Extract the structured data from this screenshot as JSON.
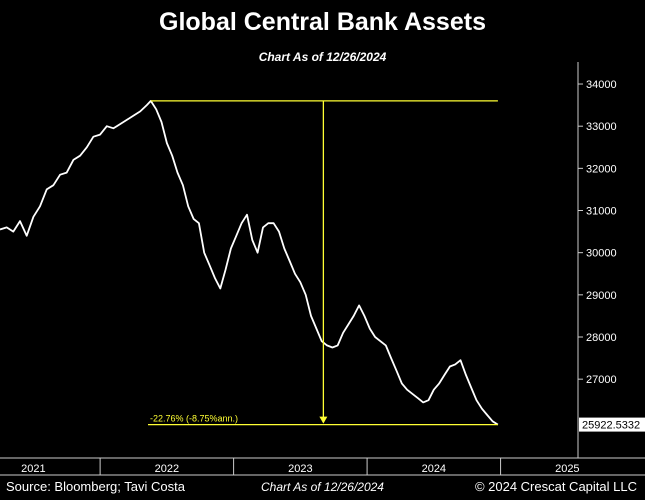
{
  "chart_data": {
    "type": "line",
    "title": "Global Central Bank Assets",
    "subtitle": "Chart As of 12/26/2024",
    "ylim": [
      25500,
      34200
    ],
    "y_ticks": [
      27000,
      28000,
      29000,
      30000,
      31000,
      32000,
      33000,
      34000
    ],
    "x_ticks": [
      "2021",
      "2022",
      "2023",
      "2024",
      "2025"
    ],
    "last_value_label": "25922.5332",
    "annotation": "-22.76% (-8.75%ann.)",
    "peak_value": 33600,
    "series": [
      {
        "values": [
          [
            2020.75,
            30550
          ],
          [
            2020.8,
            30600
          ],
          [
            2020.85,
            30500
          ],
          [
            2020.9,
            30750
          ],
          [
            2020.95,
            30400
          ],
          [
            2021.0,
            30850
          ],
          [
            2021.05,
            31100
          ],
          [
            2021.1,
            31500
          ],
          [
            2021.15,
            31600
          ],
          [
            2021.2,
            31850
          ],
          [
            2021.25,
            31900
          ],
          [
            2021.3,
            32200
          ],
          [
            2021.35,
            32300
          ],
          [
            2021.4,
            32500
          ],
          [
            2021.45,
            32750
          ],
          [
            2021.5,
            32800
          ],
          [
            2021.55,
            33000
          ],
          [
            2021.6,
            32950
          ],
          [
            2021.65,
            33050
          ],
          [
            2021.7,
            33150
          ],
          [
            2021.75,
            33250
          ],
          [
            2021.8,
            33350
          ],
          [
            2021.85,
            33500
          ],
          [
            2021.88,
            33600
          ],
          [
            2021.92,
            33400
          ],
          [
            2021.96,
            33100
          ],
          [
            2022.0,
            32600
          ],
          [
            2022.04,
            32300
          ],
          [
            2022.08,
            31900
          ],
          [
            2022.12,
            31600
          ],
          [
            2022.16,
            31100
          ],
          [
            2022.2,
            30800
          ],
          [
            2022.24,
            30700
          ],
          [
            2022.28,
            30000
          ],
          [
            2022.32,
            29700
          ],
          [
            2022.36,
            29400
          ],
          [
            2022.4,
            29150
          ],
          [
            2022.44,
            29600
          ],
          [
            2022.48,
            30100
          ],
          [
            2022.52,
            30400
          ],
          [
            2022.56,
            30700
          ],
          [
            2022.6,
            30900
          ],
          [
            2022.64,
            30300
          ],
          [
            2022.68,
            30000
          ],
          [
            2022.72,
            30600
          ],
          [
            2022.76,
            30700
          ],
          [
            2022.8,
            30700
          ],
          [
            2022.84,
            30500
          ],
          [
            2022.88,
            30100
          ],
          [
            2022.92,
            29800
          ],
          [
            2022.96,
            29500
          ],
          [
            2023.0,
            29300
          ],
          [
            2023.04,
            29000
          ],
          [
            2023.08,
            28500
          ],
          [
            2023.12,
            28200
          ],
          [
            2023.16,
            27900
          ],
          [
            2023.2,
            27800
          ],
          [
            2023.24,
            27750
          ],
          [
            2023.28,
            27800
          ],
          [
            2023.32,
            28100
          ],
          [
            2023.36,
            28300
          ],
          [
            2023.4,
            28500
          ],
          [
            2023.44,
            28750
          ],
          [
            2023.48,
            28500
          ],
          [
            2023.52,
            28200
          ],
          [
            2023.56,
            28000
          ],
          [
            2023.6,
            27900
          ],
          [
            2023.64,
            27800
          ],
          [
            2023.68,
            27500
          ],
          [
            2023.72,
            27200
          ],
          [
            2023.76,
            26900
          ],
          [
            2023.8,
            26750
          ],
          [
            2023.84,
            26650
          ],
          [
            2023.88,
            26550
          ],
          [
            2023.92,
            26450
          ],
          [
            2023.96,
            26500
          ],
          [
            2024.0,
            26750
          ],
          [
            2024.04,
            26900
          ],
          [
            2024.08,
            27100
          ],
          [
            2024.12,
            27300
          ],
          [
            2024.16,
            27350
          ],
          [
            2024.2,
            27450
          ],
          [
            2024.24,
            27100
          ],
          [
            2024.28,
            26800
          ],
          [
            2024.32,
            26500
          ],
          [
            2024.36,
            26300
          ],
          [
            2024.4,
            26150
          ],
          [
            2024.44,
            26000
          ],
          [
            2024.48,
            25922.53
          ]
        ]
      }
    ]
  },
  "footer": {
    "source": "Source: Bloomberg; Tavi Costa",
    "center": "Chart As of 12/26/2024",
    "copyright": "© 2024 Crescat Capital LLC"
  }
}
